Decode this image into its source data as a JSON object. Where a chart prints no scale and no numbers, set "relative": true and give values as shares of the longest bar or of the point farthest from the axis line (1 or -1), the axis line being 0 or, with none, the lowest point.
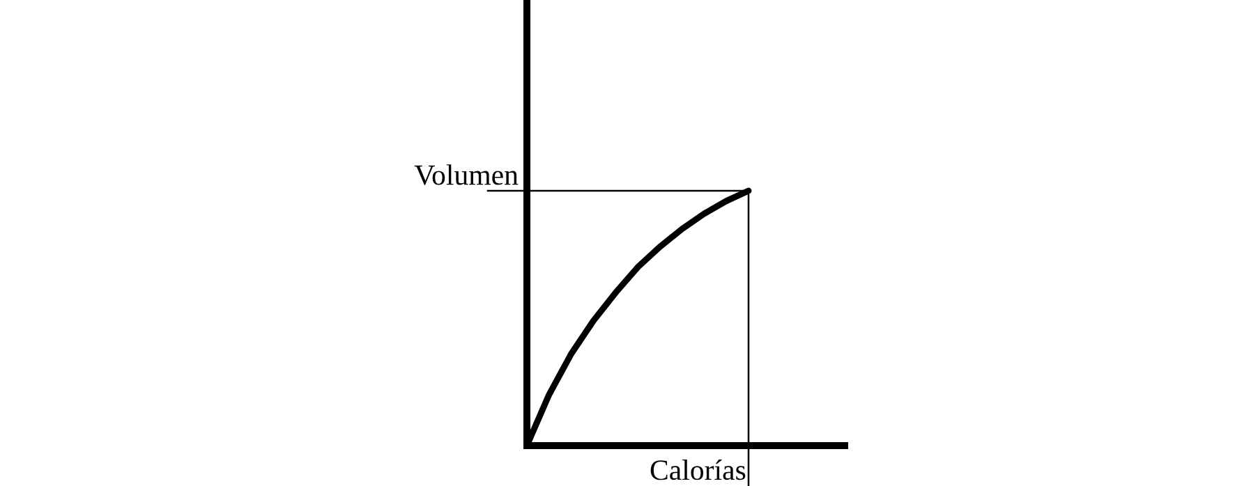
{
  "chart_data": {
    "type": "line",
    "relative": true,
    "xlabel": "Calorías",
    "ylabel": "Volumen",
    "categories": [
      null,
      null,
      null,
      null,
      null,
      null,
      null,
      null,
      null,
      null,
      null
    ],
    "series": [
      {
        "color": "#000000",
        "values": [
          0,
          0.2,
          0.36,
          0.49,
          0.6,
          0.7,
          0.78,
          0.85,
          0.91,
          0.96,
          1.0
        ]
      }
    ],
    "ref_lines": [
      {
        "axis": "y",
        "value": 1,
        "color": "#000000"
      }
    ],
    "marker": "none",
    "line_style": "solid"
  }
}
